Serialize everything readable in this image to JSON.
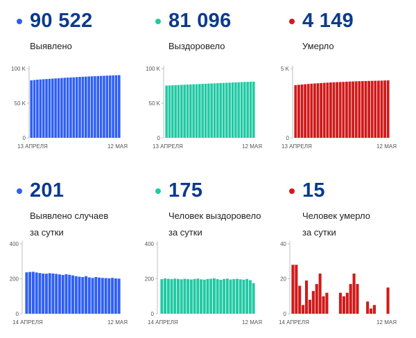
{
  "stats": [
    {
      "value": "90 522",
      "label1": "Выявлено",
      "label2": "",
      "color": "#2f5ff5",
      "chart_data": {
        "type": "bar",
        "x_start": "13 АПРЕЛЯ",
        "x_end": "12 МАЯ",
        "yticks": [
          "100 K",
          "50 K",
          "0"
        ],
        "ylim": [
          0,
          100000
        ],
        "values": [
          83000,
          83500,
          84000,
          84300,
          84600,
          84900,
          85200,
          85500,
          85800,
          86100,
          86400,
          86700,
          87000,
          87200,
          87400,
          87700,
          88000,
          88200,
          88400,
          88600,
          88800,
          89000,
          89200,
          89400,
          89600,
          89800,
          90000,
          90200,
          90400,
          90522
        ]
      }
    },
    {
      "value": "81 096",
      "label1": "Выздоровело",
      "label2": "",
      "color": "#20c9a4",
      "chart_data": {
        "type": "bar",
        "x_start": "13 АПРЕЛЯ",
        "x_end": "12 МАЯ",
        "yticks": [
          "100 K",
          "50 K",
          "0"
        ],
        "ylim": [
          0,
          100000
        ],
        "values": [
          75500,
          75700,
          75900,
          76100,
          76300,
          76500,
          76700,
          76900,
          77100,
          77300,
          77500,
          77700,
          77900,
          78100,
          78300,
          78500,
          78700,
          78900,
          79100,
          79300,
          79500,
          79700,
          79900,
          80100,
          80300,
          80500,
          80700,
          80850,
          80980,
          81096
        ]
      }
    },
    {
      "value": "4 149",
      "label1": "Умерло",
      "label2": "",
      "color": "#d11a1a",
      "chart_data": {
        "type": "bar",
        "x_start": "13 АПРЕЛЯ",
        "x_end": "12 МАЯ",
        "yticks": [
          "5 K",
          "0"
        ],
        "ylim": [
          0,
          5000
        ],
        "values": [
          3800,
          3830,
          3850,
          3870,
          3890,
          3910,
          3925,
          3940,
          3955,
          3970,
          3985,
          4000,
          4010,
          4020,
          4030,
          4040,
          4050,
          4060,
          4070,
          4080,
          4090,
          4095,
          4100,
          4110,
          4115,
          4120,
          4125,
          4130,
          4140,
          4149
        ]
      }
    },
    {
      "value": "201",
      "label1": "Выявлено случаев",
      "label2": "за сутки",
      "color": "#2f5ff5",
      "chart_data": {
        "type": "bar",
        "x_start": "14 АПРЕЛЯ",
        "x_end": "12 МАЯ",
        "yticks": [
          "400",
          "200",
          "0"
        ],
        "ylim": [
          0,
          400
        ],
        "values": [
          237,
          239,
          240,
          236,
          233,
          230,
          229,
          232,
          230,
          228,
          225,
          222,
          226,
          223,
          219,
          215,
          212,
          210,
          215,
          208,
          205,
          210,
          207,
          205,
          204,
          203,
          205,
          202,
          201
        ]
      }
    },
    {
      "value": "175",
      "label1": "Человек выздоровело",
      "label2": "за сутки",
      "color": "#20c9a4",
      "chart_data": {
        "type": "bar",
        "x_start": "14 АПРЕЛЯ",
        "x_end": "12 МАЯ",
        "yticks": [
          "400",
          "200",
          "0"
        ],
        "ylim": [
          0,
          400
        ],
        "values": [
          198,
          202,
          200,
          198,
          201,
          199,
          197,
          200,
          198,
          196,
          199,
          201,
          197,
          195,
          199,
          200,
          203,
          198,
          194,
          199,
          201,
          196,
          198,
          200,
          197,
          195,
          199,
          192,
          175
        ]
      }
    },
    {
      "value": "15",
      "label1": "Человек умерло",
      "label2": "за сутки",
      "color": "#d11a1a",
      "chart_data": {
        "type": "bar",
        "x_start": "14 АПРЕЛЯ",
        "x_end": "12 МАЯ",
        "yticks": [
          "40",
          "20",
          "0"
        ],
        "ylim": [
          0,
          40
        ],
        "values": [
          28,
          28,
          16,
          5,
          19,
          8,
          13,
          17,
          23,
          10,
          12,
          0,
          0,
          0,
          12,
          10,
          12,
          17,
          23,
          17,
          0,
          0,
          7,
          3,
          5,
          0,
          0,
          0,
          15
        ]
      }
    }
  ]
}
